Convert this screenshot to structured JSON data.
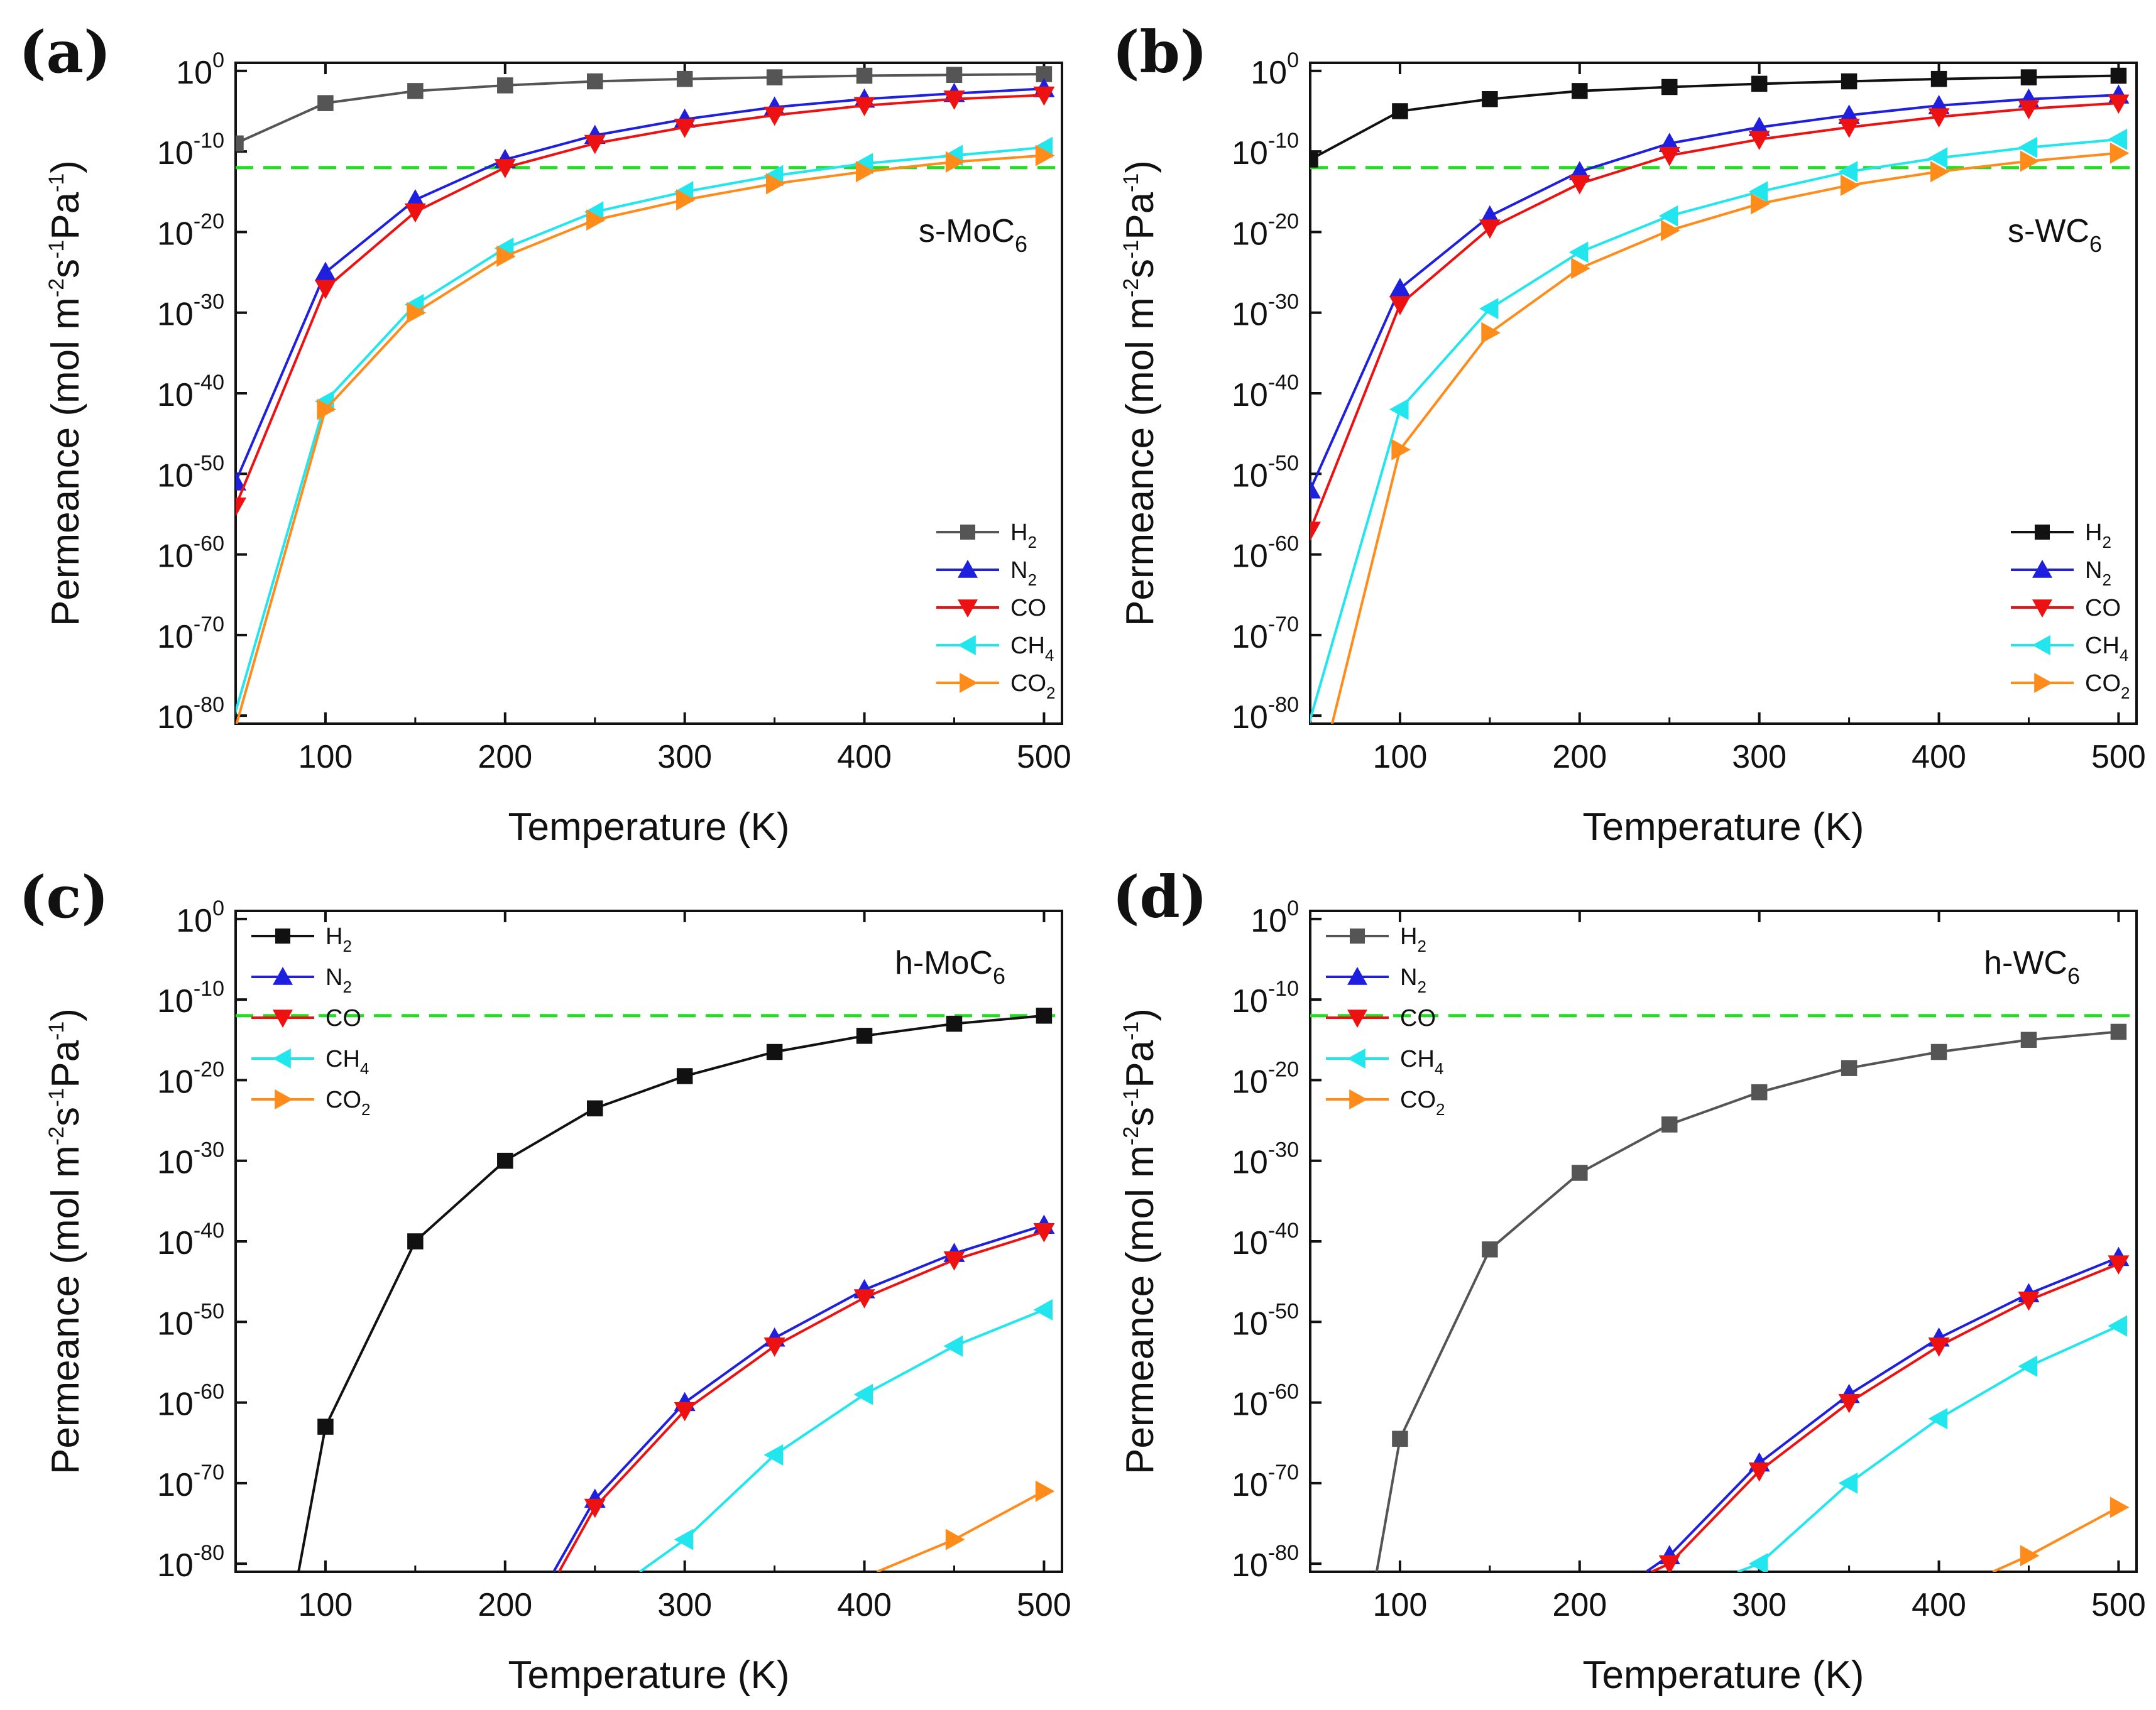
{
  "figure": {
    "ref_line_color": "#22dd22",
    "ref_line_value_exponent": -12,
    "series_styles": [
      {
        "name": "H2",
        "label_main": "H",
        "label_sub": "2",
        "marker": "square",
        "color": "#555555"
      },
      {
        "name": "N2",
        "label_main": "N",
        "label_sub": "2",
        "marker": "triangle-up",
        "color": "#1f1fe0"
      },
      {
        "name": "CO",
        "label_main": "CO",
        "label_sub": "",
        "marker": "triangle-down",
        "color": "#ee1111"
      },
      {
        "name": "CH4",
        "label_main": "CH",
        "label_sub": "4",
        "marker": "triangle-left",
        "color": "#22e6ee"
      },
      {
        "name": "CO2",
        "label_main": "CO",
        "label_sub": "2",
        "marker": "triangle-right",
        "color": "#ff8c1a"
      }
    ]
  },
  "chart_data": [
    {
      "panel": "(a)",
      "type": "line",
      "title_main": "s-MoC",
      "title_sub": "6",
      "xlabel": "Temperature (K)",
      "ylabel": "Permeance (mol m-2s-1Pa-1)",
      "xlim": [
        50,
        510
      ],
      "ylim": [
        -81,
        1
      ],
      "xticks": [
        100,
        200,
        300,
        400,
        500
      ],
      "yticks": [
        0,
        -10,
        -20,
        -30,
        -40,
        -50,
        -60,
        -70,
        -80
      ],
      "y_scale": "log10",
      "legend_position": "bottom-right",
      "h2_color": "#555555",
      "series": [
        {
          "name": "H2",
          "x": [
            50,
            100,
            150,
            200,
            250,
            300,
            350,
            400,
            450,
            500
          ],
          "log10_y": [
            -9,
            -4,
            -2.5,
            -1.8,
            -1.3,
            -1.0,
            -0.8,
            -0.6,
            -0.5,
            -0.4
          ]
        },
        {
          "name": "N2",
          "x": [
            50,
            100,
            150,
            200,
            250,
            300,
            350,
            400,
            450,
            500
          ],
          "log10_y": [
            -51,
            -25,
            -16,
            -11,
            -8,
            -6,
            -4.5,
            -3.5,
            -2.8,
            -2.2
          ]
        },
        {
          "name": "CO",
          "x": [
            50,
            100,
            150,
            200,
            250,
            300,
            350,
            400,
            450,
            500
          ],
          "log10_y": [
            -54,
            -27,
            -17.5,
            -12,
            -9,
            -7,
            -5.5,
            -4.3,
            -3.5,
            -3
          ]
        },
        {
          "name": "CH4",
          "x": [
            48,
            100,
            150,
            200,
            250,
            300,
            350,
            400,
            450,
            500
          ],
          "log10_y": [
            -81,
            -41,
            -29,
            -22,
            -17.5,
            -15,
            -13,
            -11.5,
            -10.5,
            -9.5
          ]
        },
        {
          "name": "CO2",
          "x": [
            48,
            100,
            150,
            200,
            250,
            300,
            350,
            400,
            450,
            500
          ],
          "log10_y": [
            -83,
            -42,
            -30,
            -23,
            -18.5,
            -16,
            -14,
            -12.5,
            -11.3,
            -10.5
          ]
        }
      ]
    },
    {
      "panel": "(b)",
      "type": "line",
      "title_main": "s-WC",
      "title_sub": "6",
      "xlabel": "Temperature (K)",
      "ylabel": "Permeance (mol m-2s-1Pa-1)",
      "xlim": [
        50,
        510
      ],
      "ylim": [
        -81,
        1
      ],
      "xticks": [
        100,
        200,
        300,
        400,
        500
      ],
      "yticks": [
        0,
        -10,
        -20,
        -30,
        -40,
        -50,
        -60,
        -70,
        -80
      ],
      "y_scale": "log10",
      "legend_position": "bottom-right",
      "h2_color": "#111111",
      "series": [
        {
          "name": "H2",
          "x": [
            50,
            100,
            150,
            200,
            250,
            300,
            350,
            400,
            450,
            500
          ],
          "log10_y": [
            -11,
            -5,
            -3.5,
            -2.5,
            -2,
            -1.6,
            -1.3,
            -1,
            -0.8,
            -0.6
          ]
        },
        {
          "name": "N2",
          "x": [
            50,
            100,
            150,
            200,
            250,
            300,
            350,
            400,
            450,
            500
          ],
          "log10_y": [
            -52,
            -27,
            -18,
            -12.5,
            -9,
            -7,
            -5.5,
            -4.3,
            -3.5,
            -3
          ]
        },
        {
          "name": "CO",
          "x": [
            50,
            100,
            150,
            200,
            250,
            300,
            350,
            400,
            450,
            500
          ],
          "log10_y": [
            -57,
            -29,
            -19.5,
            -14,
            -10.5,
            -8.5,
            -7,
            -5.7,
            -4.7,
            -4
          ]
        },
        {
          "name": "CH4",
          "x": [
            48,
            100,
            150,
            200,
            250,
            300,
            350,
            400,
            450,
            500
          ],
          "log10_y": [
            -82,
            -42,
            -29.5,
            -22.5,
            -18,
            -15,
            -12.5,
            -10.8,
            -9.5,
            -8.5
          ]
        },
        {
          "name": "CO2",
          "x": [
            60,
            100,
            150,
            200,
            250,
            300,
            350,
            400,
            450,
            500
          ],
          "log10_y": [
            -83,
            -47,
            -32.5,
            -24.5,
            -19.8,
            -16.5,
            -14.2,
            -12.5,
            -11.2,
            -10.2
          ]
        }
      ]
    },
    {
      "panel": "(c)",
      "type": "line",
      "title_main": "h-MoC",
      "title_sub": "6",
      "xlabel": "Temperature (K)",
      "ylabel": "Permeance (mol m-2s-1Pa-1)",
      "xlim": [
        50,
        510
      ],
      "ylim": [
        -81,
        1
      ],
      "xticks": [
        100,
        200,
        300,
        400,
        500
      ],
      "yticks": [
        0,
        -10,
        -20,
        -30,
        -40,
        -50,
        -60,
        -70,
        -80
      ],
      "y_scale": "log10",
      "legend_position": "top-left",
      "h2_color": "#111111",
      "series": [
        {
          "name": "H2",
          "x": [
            85,
            100,
            150,
            200,
            250,
            300,
            350,
            400,
            450,
            500
          ],
          "log10_y": [
            -81,
            -63,
            -40,
            -30,
            -23.5,
            -19.5,
            -16.5,
            -14.5,
            -13,
            -12
          ]
        },
        {
          "name": "N2",
          "x": [
            227,
            250,
            300,
            350,
            400,
            450,
            500
          ],
          "log10_y": [
            -81,
            -72,
            -60,
            -52,
            -46,
            -41.5,
            -38
          ]
        },
        {
          "name": "CO",
          "x": [
            230,
            250,
            300,
            350,
            400,
            450,
            500
          ],
          "log10_y": [
            -81,
            -73,
            -61,
            -53,
            -47,
            -42.3,
            -38.8
          ]
        },
        {
          "name": "CH4",
          "x": [
            275,
            300,
            350,
            400,
            450,
            500
          ],
          "log10_y": [
            -81,
            -77,
            -66.5,
            -59,
            -53,
            -48.5
          ]
        },
        {
          "name": "CO2",
          "x": [
            407,
            450,
            500
          ],
          "log10_y": [
            -81,
            -77,
            -71
          ]
        }
      ]
    },
    {
      "panel": "(d)",
      "type": "line",
      "title_main": "h-WC",
      "title_sub": "6",
      "xlabel": "Temperature (K)",
      "ylabel": "Permeance (mol m-2s-1Pa-1)",
      "xlim": [
        50,
        510
      ],
      "ylim": [
        -81,
        1
      ],
      "xticks": [
        100,
        200,
        300,
        400,
        500
      ],
      "yticks": [
        0,
        -10,
        -20,
        -30,
        -40,
        -50,
        -60,
        -70,
        -80
      ],
      "y_scale": "log10",
      "legend_position": "top-left",
      "h2_color": "#555555",
      "series": [
        {
          "name": "H2",
          "x": [
            87,
            100,
            150,
            200,
            250,
            300,
            350,
            400,
            450,
            500
          ],
          "log10_y": [
            -81,
            -64.5,
            -41,
            -31.5,
            -25.5,
            -21.5,
            -18.5,
            -16.5,
            -15,
            -14
          ]
        },
        {
          "name": "N2",
          "x": [
            237,
            250,
            300,
            350,
            400,
            450,
            500
          ],
          "log10_y": [
            -81,
            -79,
            -67.5,
            -59,
            -52,
            -46.5,
            -42
          ]
        },
        {
          "name": "CO",
          "x": [
            240,
            250,
            300,
            350,
            400,
            450,
            500
          ],
          "log10_y": [
            -81,
            -80,
            -68.5,
            -60,
            -53,
            -47.3,
            -42.8
          ]
        },
        {
          "name": "CH4",
          "x": [
            288,
            300,
            350,
            400,
            450,
            500
          ],
          "log10_y": [
            -81,
            -80,
            -70,
            -62,
            -55.5,
            -50.5
          ]
        },
        {
          "name": "CO2",
          "x": [
            430,
            450,
            500
          ],
          "log10_y": [
            -81,
            -79,
            -73
          ]
        }
      ]
    }
  ]
}
